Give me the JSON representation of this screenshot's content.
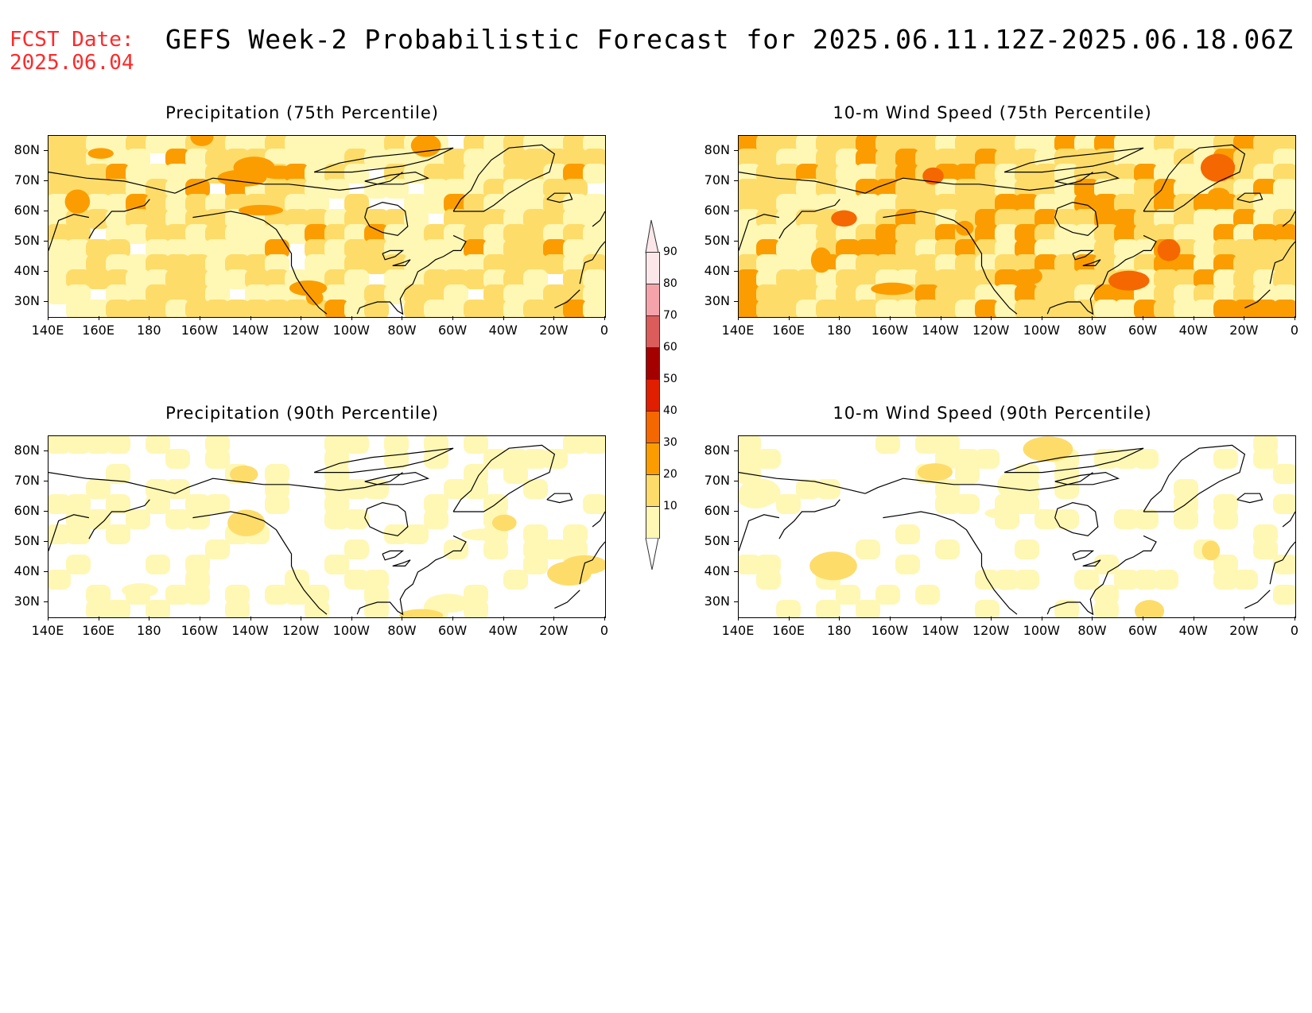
{
  "fcst": {
    "line1": "FCST Date:",
    "line2": "2025.06.04"
  },
  "title": "GEFS Week-2 Probabilistic Forecast for 2025.06.11.12Z-2025.06.18.06Z",
  "panels": [
    {
      "id": "precip75",
      "title": "Precipitation (75th Percentile)",
      "intensity": 2
    },
    {
      "id": "wind75",
      "title": "10-m Wind Speed (75th Percentile)",
      "intensity": 2.4
    },
    {
      "id": "precip90",
      "title": "Precipitation (90th Percentile)",
      "intensity": 0.6
    },
    {
      "id": "wind90",
      "title": "10-m Wind Speed (90th Percentile)",
      "intensity": 0.5
    }
  ],
  "axes": {
    "lat_labels": [
      "80N",
      "70N",
      "60N",
      "50N",
      "40N",
      "30N"
    ],
    "lon_labels": [
      "140E",
      "160E",
      "180",
      "160W",
      "140W",
      "120W",
      "100W",
      "80W",
      "60W",
      "40W",
      "20W",
      "0"
    ]
  },
  "colorbar": {
    "levels": [
      "90",
      "80",
      "70",
      "60",
      "50",
      "40",
      "30",
      "20",
      "10"
    ],
    "colors": [
      "#fbe7ea",
      "#f4a3aa",
      "#dc5b5b",
      "#a50000",
      "#e01e00",
      "#f56700",
      "#fb9d00",
      "#fddc6a",
      "#fff7b4"
    ]
  },
  "colors": {
    "fcst_text": "#ff2a2a",
    "coast": "#000000"
  }
}
